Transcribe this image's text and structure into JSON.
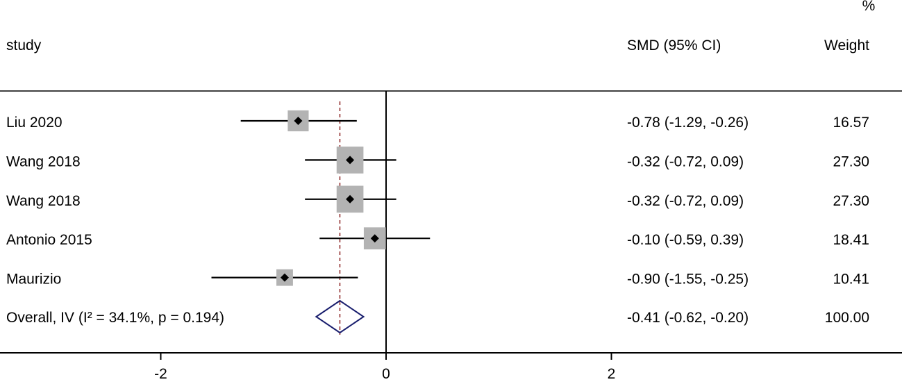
{
  "chart_data": {
    "type": "forest",
    "columns": {
      "study": "study",
      "estimate": "SMD (95% CI)",
      "weight": "Weight",
      "weight_unit": "%"
    },
    "studies": [
      {
        "label": "Liu 2020",
        "smd": -0.78,
        "lower": -1.29,
        "upper": -0.26,
        "weight": 16.57,
        "ci_text": "-0.78 (-1.29, -0.26)",
        "weight_text": "16.57"
      },
      {
        "label": "Wang 2018",
        "smd": -0.32,
        "lower": -0.72,
        "upper": 0.09,
        "weight": 27.3,
        "ci_text": "-0.32 (-0.72, 0.09)",
        "weight_text": "27.30"
      },
      {
        "label": "Wang 2018",
        "smd": -0.32,
        "lower": -0.72,
        "upper": 0.09,
        "weight": 27.3,
        "ci_text": "-0.32 (-0.72, 0.09)",
        "weight_text": "27.30"
      },
      {
        "label": "Antonio 2015",
        "smd": -0.1,
        "lower": -0.59,
        "upper": 0.39,
        "weight": 18.41,
        "ci_text": "-0.10 (-0.59, 0.39)",
        "weight_text": "18.41"
      },
      {
        "label": "Maurizio",
        "smd": -0.9,
        "lower": -1.55,
        "upper": -0.25,
        "weight": 10.41,
        "ci_text": "-0.90 (-1.55, -0.25)",
        "weight_text": "10.41"
      }
    ],
    "overall": {
      "label": "Overall, IV (I² = 34.1%, p = 0.194)",
      "smd": -0.41,
      "lower": -0.62,
      "upper": -0.2,
      "weight": 100.0,
      "ci_text": "-0.41 (-0.62, -0.20)",
      "weight_text": "100.00"
    },
    "x_ticks": [
      {
        "value": -2,
        "label": "-2"
      },
      {
        "value": 0,
        "label": "0"
      },
      {
        "value": 2,
        "label": "2"
      }
    ],
    "null_line": 0,
    "colors": {
      "marker": "#000000",
      "weight_box": "#b3b3b3",
      "diamond": "#1a1f6e",
      "overall_line": "#8b2020",
      "axis": "#000000"
    }
  }
}
